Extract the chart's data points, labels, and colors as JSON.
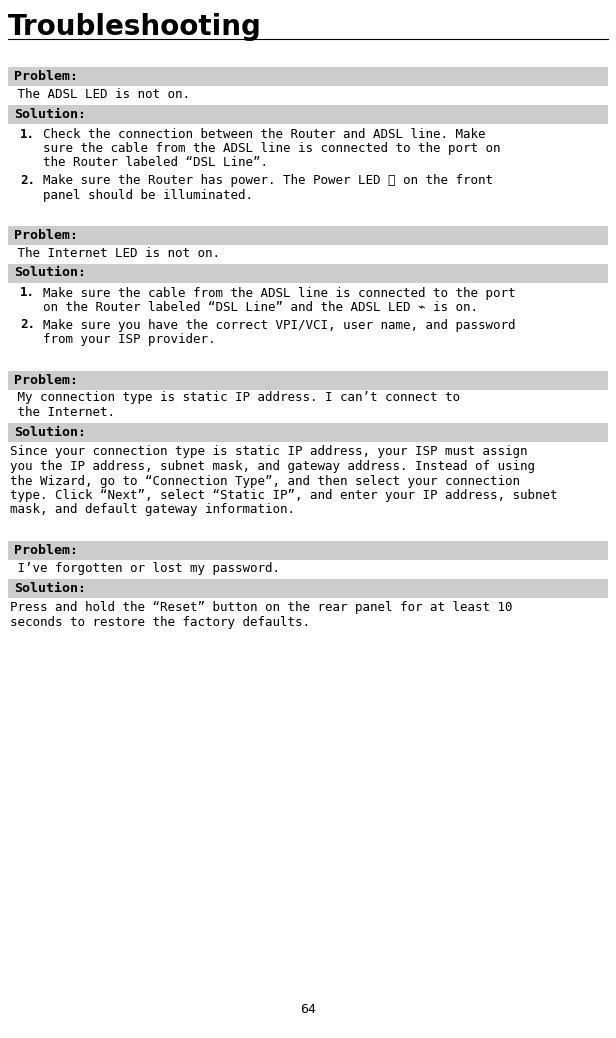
{
  "title": "Troubleshooting",
  "bg_color": "#ffffff",
  "header_bg": "#cccccc",
  "page_number": "64",
  "sections": [
    {
      "problem_label": "Problem:",
      "problem_text": " The ADSL LED is not on.",
      "solution_label": "Solution:",
      "numbered": true,
      "solution_items": [
        "Check the connection between the Router and ADSL line. Make\nsure the cable from the ADSL line is connected to the port on\nthe Router labeled “DSL Line”.",
        "Make sure the Router has power. The Power LED ⏻ on the front\npanel should be illuminated."
      ]
    },
    {
      "problem_label": "Problem:",
      "problem_text": " The Internet LED is not on.",
      "solution_label": "Solution:",
      "numbered": true,
      "solution_items": [
        "Make sure the cable from the ADSL line is connected to the port\non the Router labeled “DSL Line” and the ADSL LED ⌁ is on.",
        "Make sure you have the correct VPI/VCI, user name, and password\nfrom your ISP provider."
      ]
    },
    {
      "problem_label": "Problem:",
      "problem_text": " My connection type is static IP address. I can’t connect to\n the Internet.",
      "solution_label": "Solution:",
      "numbered": false,
      "solution_items": [
        "Since your connection type is static IP address, your ISP must assign\nyou the IP address, subnet mask, and gateway address. Instead of using\nthe Wizard, go to “Connection Type”, and then select your connection\ntype. Click “Next”, select “Static IP”, and enter your IP address, subnet\nmask, and default gateway information."
      ]
    },
    {
      "problem_label": "Problem:",
      "problem_text": " I’ve forgotten or lost my password.",
      "solution_label": "Solution:",
      "numbered": false,
      "solution_items": [
        "Press and hold the “Reset” button on the rear panel for at least 10\nseconds to restore the factory defaults."
      ]
    }
  ]
}
